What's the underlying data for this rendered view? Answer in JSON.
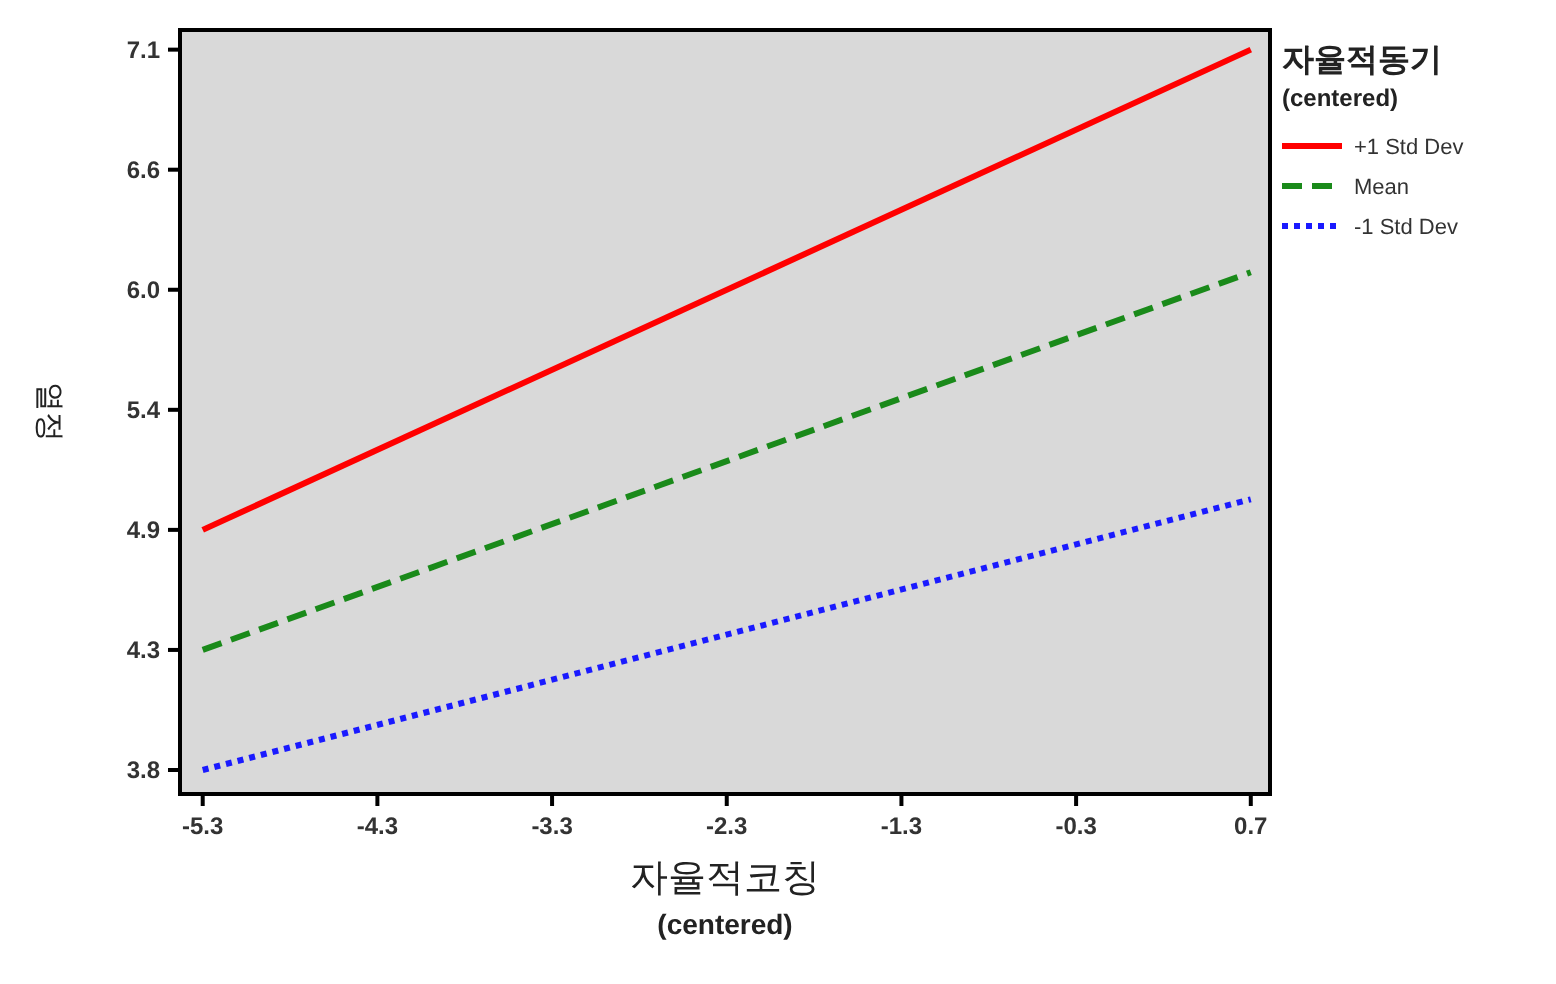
{
  "chart_data": {
    "type": "line",
    "xlabel": "자율적코칭\n(centered)",
    "ylabel": "열정",
    "legend_title": "자율적동기\n(centered)",
    "legend": "top right",
    "grid": false,
    "x": [
      -5.3,
      0.7
    ],
    "series": [
      {
        "name": "+1 Std Dev",
        "color": "#ff0000",
        "line_style": "solid",
        "values": [
          4.9,
          7.1
        ]
      },
      {
        "name": "Mean",
        "color": "#1a8a1a",
        "line_style": "dashed",
        "values": [
          4.35,
          6.08
        ]
      },
      {
        "name": "-1 Std Dev",
        "color": "#1a1aff",
        "line_style": "dotted",
        "values": [
          3.8,
          5.04
        ]
      }
    ],
    "xlim": [
      -5.43,
      0.81
    ],
    "ylim": [
      3.69,
      7.19
    ],
    "xticks": [
      -5.3,
      -4.3,
      -3.3,
      -2.3,
      -1.3,
      -0.3,
      0.7
    ],
    "yticks": [
      3.8,
      {
        "value": 4.35,
        "label": "4.3"
      },
      4.9,
      {
        "value": 5.45,
        "label": "5.4"
      },
      {
        "value": 6.0,
        "label": "6.0"
      },
      {
        "value": 6.55,
        "label": "6.6"
      },
      7.1
    ]
  }
}
